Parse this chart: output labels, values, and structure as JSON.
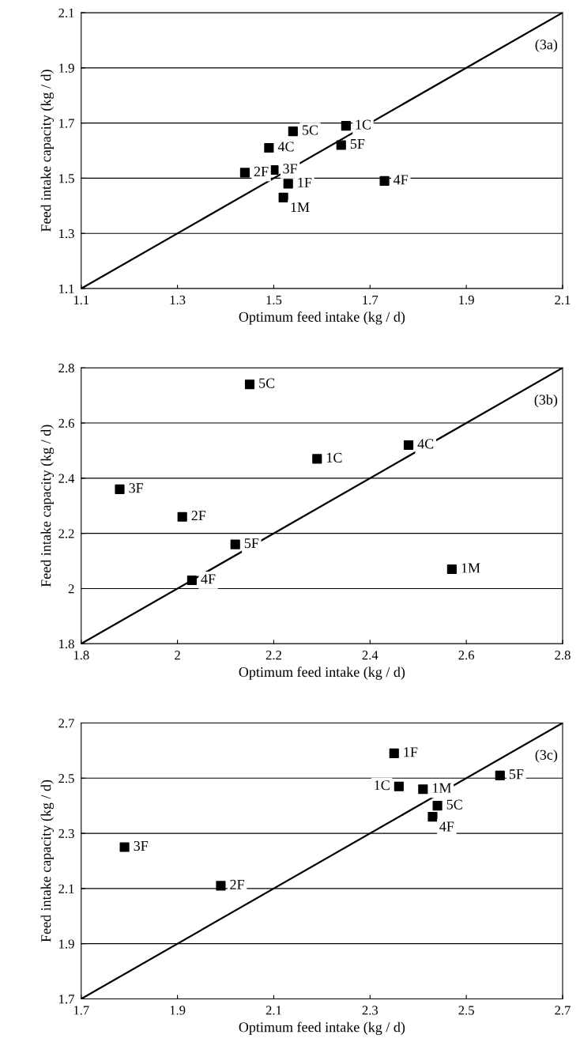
{
  "chart_data": [
    {
      "type": "scatter",
      "xlabel": "Optimum feed intake (kg / d)",
      "ylabel": "Feed intake capacity (kg / d)",
      "xlim": [
        1.1,
        2.1
      ],
      "ylim": [
        1.1,
        2.1
      ],
      "xticks": [
        1.1,
        1.3,
        1.5,
        1.7,
        1.9,
        2.1
      ],
      "yticks": [
        1.1,
        1.3,
        1.5,
        1.7,
        1.9,
        2.1
      ],
      "grid": "y",
      "series": [
        {
          "marker": "square",
          "color": "#000000",
          "x": [
            1.44,
            1.49,
            1.5,
            1.54,
            1.53,
            1.52,
            1.65,
            1.64,
            1.73
          ],
          "values": [
            1.52,
            1.61,
            1.53,
            1.67,
            1.48,
            1.43,
            1.69,
            1.62,
            1.49
          ]
        },
        {
          "type": "line",
          "marker": "none",
          "color": "#000000",
          "x": [
            1.1,
            2.1
          ],
          "values": [
            1.1,
            2.1
          ]
        }
      ],
      "annotations": [
        "(3a)",
        {
          "text": "2F",
          "x": 1.44,
          "y": 1.52
        },
        {
          "text": "4C",
          "x": 1.49,
          "y": 1.61
        },
        {
          "text": "3F",
          "x": 1.5,
          "y": 1.53
        },
        {
          "text": "5C",
          "x": 1.54,
          "y": 1.67
        },
        {
          "text": "1F",
          "x": 1.53,
          "y": 1.48
        },
        {
          "text": "1M",
          "x": 1.52,
          "y": 1.43
        },
        {
          "text": "1C",
          "x": 1.65,
          "y": 1.69
        },
        {
          "text": "5F",
          "x": 1.64,
          "y": 1.62
        },
        {
          "text": "4F",
          "x": 1.73,
          "y": 1.49
        }
      ]
    },
    {
      "type": "scatter",
      "xlabel": "Optimum feed intake (kg / d)",
      "ylabel": "Feed intake capacity (kg / d)",
      "xlim": [
        1.8,
        2.8
      ],
      "ylim": [
        1.8,
        2.8
      ],
      "xticks": [
        1.8,
        2,
        2.2,
        2.4,
        2.6,
        2.8
      ],
      "yticks": [
        1.8,
        2,
        2.2,
        2.4,
        2.6,
        2.8
      ],
      "grid": "y",
      "series": [
        {
          "marker": "square",
          "color": "#000000",
          "x": [
            1.88,
            2.01,
            2.03,
            2.12,
            2.15,
            2.29,
            2.48,
            2.57
          ],
          "values": [
            2.36,
            2.26,
            2.03,
            2.16,
            2.74,
            2.47,
            2.52,
            2.07
          ]
        },
        {
          "type": "line",
          "marker": "none",
          "color": "#000000",
          "x": [
            1.8,
            2.8
          ],
          "values": [
            1.8,
            2.8
          ]
        }
      ],
      "annotations": [
        "(3b)",
        {
          "text": "3F",
          "x": 1.88,
          "y": 2.36
        },
        {
          "text": "2F",
          "x": 2.01,
          "y": 2.26
        },
        {
          "text": "4F",
          "x": 2.03,
          "y": 2.03
        },
        {
          "text": "5F",
          "x": 2.12,
          "y": 2.16
        },
        {
          "text": "5C",
          "x": 2.15,
          "y": 2.74
        },
        {
          "text": "1C",
          "x": 2.29,
          "y": 2.47
        },
        {
          "text": "4C",
          "x": 2.48,
          "y": 2.52
        },
        {
          "text": "1M",
          "x": 2.57,
          "y": 2.07
        }
      ]
    },
    {
      "type": "scatter",
      "xlabel": "Optimum feed intake (kg / d)",
      "ylabel": "Feed intake capacity (kg / d)",
      "xlim": [
        1.7,
        2.7
      ],
      "ylim": [
        1.7,
        2.7
      ],
      "xticks": [
        1.7,
        1.9,
        2.1,
        2.3,
        2.5,
        2.7
      ],
      "yticks": [
        1.7,
        1.9,
        2.1,
        2.3,
        2.5,
        2.7
      ],
      "grid": "y",
      "series": [
        {
          "marker": "square",
          "color": "#000000",
          "x": [
            1.79,
            1.99,
            2.35,
            2.36,
            2.41,
            2.44,
            2.43,
            2.57
          ],
          "values": [
            2.25,
            2.11,
            2.59,
            2.47,
            2.46,
            2.4,
            2.36,
            2.51
          ]
        },
        {
          "type": "line",
          "marker": "none",
          "color": "#000000",
          "x": [
            1.7,
            2.7
          ],
          "values": [
            1.7,
            2.7
          ]
        }
      ],
      "annotations": [
        "(3c)",
        {
          "text": "3F",
          "x": 1.79,
          "y": 2.25
        },
        {
          "text": "2F",
          "x": 1.99,
          "y": 2.11
        },
        {
          "text": "1F",
          "x": 2.35,
          "y": 2.59
        },
        {
          "text": "1C",
          "x": 2.36,
          "y": 2.47
        },
        {
          "text": "1M",
          "x": 2.41,
          "y": 2.46
        },
        {
          "text": "5C",
          "x": 2.44,
          "y": 2.4
        },
        {
          "text": "4F",
          "x": 2.43,
          "y": 2.36
        },
        {
          "text": "5F",
          "x": 2.57,
          "y": 2.51
        }
      ]
    }
  ]
}
